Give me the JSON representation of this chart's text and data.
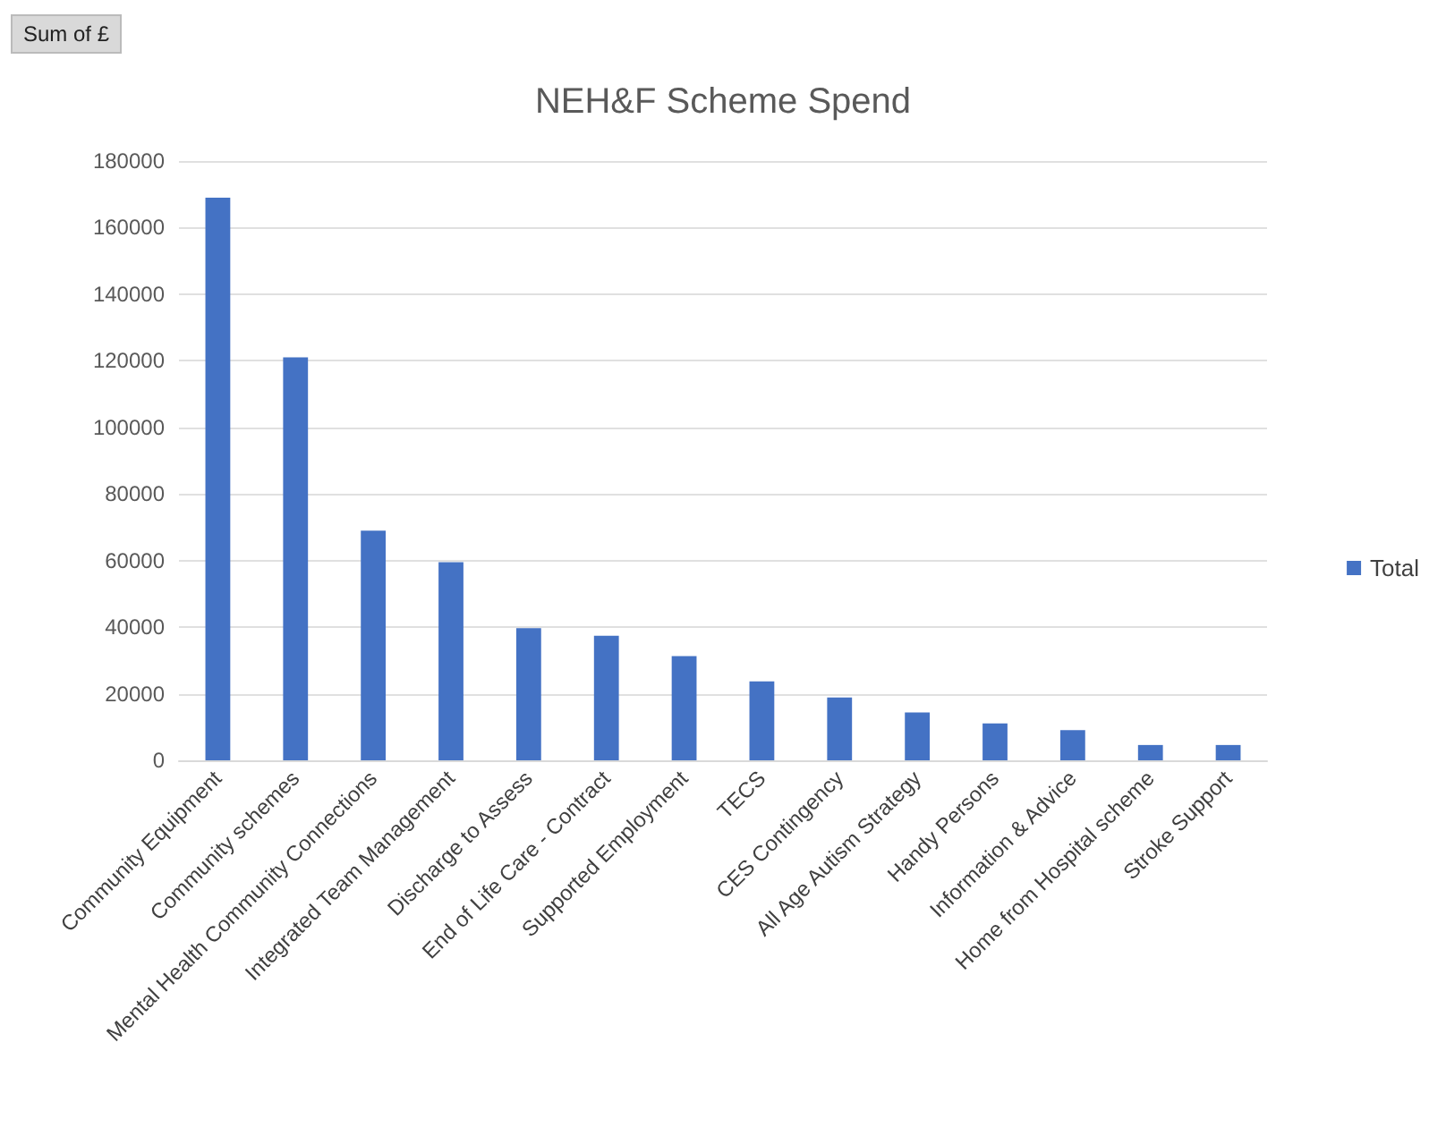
{
  "chart_data": {
    "type": "bar",
    "title": "NEH&F Scheme Spend",
    "annotations": [
      "Sum of £"
    ],
    "categories": [
      "Community Equipment",
      "Community schemes",
      "Mental Health Community Connections",
      "Integrated Team Management",
      "Discharge to Assess",
      "End of Life Care - Contract",
      "Supported Employment",
      "TECS",
      "CES Contingency",
      "All Age Autism Strategy",
      "Handy Persons",
      "Information & Advice",
      "Home from Hospital scheme",
      "Stroke Support"
    ],
    "series": [
      {
        "name": "Total",
        "color": "#4472c4",
        "values": [
          169000,
          121000,
          69000,
          59500,
          39700,
          37400,
          31300,
          23700,
          18900,
          14400,
          11100,
          9100,
          4600,
          4600
        ]
      }
    ],
    "ylim": [
      0,
      180000
    ],
    "yticks": [
      0,
      20000,
      40000,
      60000,
      80000,
      100000,
      120000,
      140000,
      160000,
      180000
    ],
    "grid": "y",
    "legend": "right"
  }
}
